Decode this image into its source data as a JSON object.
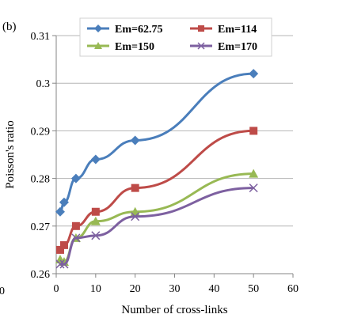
{
  "chart_data": {
    "type": "line",
    "panel_label": "(b)",
    "xlabel": "Number of cross-links",
    "ylabel": "Poisson's ratio",
    "xlim": [
      0,
      60
    ],
    "ylim": [
      0.26,
      0.31
    ],
    "x_ticks": [
      0,
      10,
      20,
      30,
      40,
      50,
      60
    ],
    "y_ticks": [
      0.26,
      0.27,
      0.28,
      0.29,
      0.3,
      0.31
    ],
    "x_tick_labels": [
      "0",
      "10",
      "20",
      "30",
      "40",
      "50",
      "60"
    ],
    "y_tick_labels": [
      "0.26",
      "0.27",
      "0.28",
      "0.29",
      "0.3",
      "0.31"
    ],
    "left_edge_tick_label": "0",
    "grid": "horizontal",
    "legend_position": "top",
    "series": [
      {
        "name": "Em=62.75",
        "color": "#4a7ebb",
        "marker": "diamond",
        "x": [
          1,
          2,
          5,
          10,
          20,
          50
        ],
        "y": [
          0.273,
          0.275,
          0.28,
          0.284,
          0.288,
          0.302
        ]
      },
      {
        "name": "Em=114",
        "color": "#be4b48",
        "marker": "square",
        "x": [
          1,
          2,
          5,
          10,
          20,
          50
        ],
        "y": [
          0.265,
          0.266,
          0.27,
          0.273,
          0.278,
          0.29
        ]
      },
      {
        "name": "Em=150",
        "color": "#98b954",
        "marker": "triangle",
        "x": [
          1,
          2,
          5,
          10,
          20,
          50
        ],
        "y": [
          0.263,
          0.2625,
          0.2675,
          0.271,
          0.273,
          0.281
        ]
      },
      {
        "name": "Em=170",
        "color": "#7d60a0",
        "marker": "x",
        "x": [
          1,
          2,
          5,
          10,
          20,
          50
        ],
        "y": [
          0.262,
          0.262,
          0.2675,
          0.268,
          0.272,
          0.278
        ]
      }
    ]
  }
}
